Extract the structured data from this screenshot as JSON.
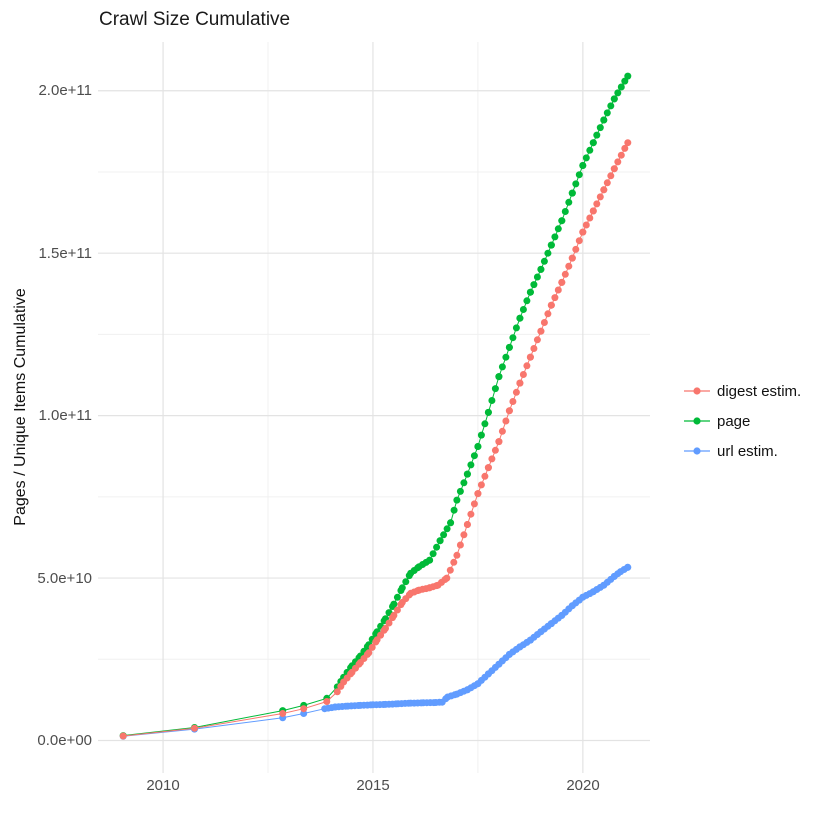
{
  "title": "Crawl Size Cumulative",
  "y_axis": {
    "label": "Pages / Unique Items Cumulative",
    "ticks": [
      "0.0e+00",
      "5.0e+10",
      "1.0e+11",
      "1.5e+11",
      "2.0e+11"
    ]
  },
  "x_axis": {
    "ticks": [
      "2010",
      "2015",
      "2020"
    ]
  },
  "legend": {
    "position": "right",
    "entries": [
      "digest estim.",
      "page",
      "url estim."
    ]
  },
  "chart_data": {
    "type": "scatter",
    "title": "Crawl Size Cumulative",
    "xlabel": "",
    "ylabel": "Pages / Unique Items Cumulative",
    "y_unit": "items, values listed in units of 1e9 (billions)",
    "x_unit": "year (decimal)",
    "xlim": [
      2008.45,
      2021.6
    ],
    "ylim_e9": [
      -10,
      215
    ],
    "x_breaks": [
      2010,
      2015,
      2020
    ],
    "x_minor_breaks": [
      2012.5,
      2017.5
    ],
    "y_breaks_e9": [
      0,
      50,
      100,
      150,
      200
    ],
    "y_minor_breaks_e9": [
      25,
      75,
      125,
      175
    ],
    "grid": true,
    "legend_position": "right",
    "point_interval_years": 0.0833,
    "series": [
      {
        "name": "digest estim.",
        "color": "#F8766D",
        "dense_from": 2014.0,
        "points": [
          [
            2009.05,
            1.4
          ],
          [
            2010.75,
            3.8
          ],
          [
            2012.85,
            8.3
          ],
          [
            2013.35,
            9.8
          ],
          [
            2013.9,
            12
          ],
          [
            2014.15,
            15
          ],
          [
            2014.3,
            18
          ],
          [
            2014.5,
            21
          ],
          [
            2014.7,
            24
          ],
          [
            2014.9,
            27
          ],
          [
            2015.1,
            31
          ],
          [
            2015.3,
            34.5
          ],
          [
            2015.5,
            38.5
          ],
          [
            2015.7,
            42.5
          ],
          [
            2015.9,
            45.3
          ],
          [
            2016.1,
            46.3
          ],
          [
            2016.35,
            47
          ],
          [
            2016.55,
            47.8
          ],
          [
            2016.76,
            50
          ],
          [
            2017.0,
            57
          ],
          [
            2017.25,
            66.5
          ],
          [
            2017.5,
            76
          ],
          [
            2017.75,
            84
          ],
          [
            2018.0,
            92
          ],
          [
            2018.25,
            101.5
          ],
          [
            2018.5,
            110
          ],
          [
            2018.75,
            118
          ],
          [
            2019.0,
            126
          ],
          [
            2019.25,
            134
          ],
          [
            2019.5,
            141
          ],
          [
            2019.75,
            148.5
          ],
          [
            2020.0,
            156.5
          ],
          [
            2020.25,
            163
          ],
          [
            2020.5,
            169.5
          ],
          [
            2020.75,
            176
          ],
          [
            2021.07,
            184
          ]
        ]
      },
      {
        "name": "page",
        "color": "#00BA38",
        "dense_from": 2014.0,
        "points": [
          [
            2009.05,
            1.5
          ],
          [
            2010.75,
            4
          ],
          [
            2012.85,
            9.2
          ],
          [
            2013.35,
            10.8
          ],
          [
            2013.9,
            13
          ],
          [
            2014.15,
            16.5
          ],
          [
            2014.3,
            19.5
          ],
          [
            2014.5,
            23
          ],
          [
            2014.7,
            26
          ],
          [
            2014.9,
            29.5
          ],
          [
            2015.1,
            33.5
          ],
          [
            2015.3,
            37.5
          ],
          [
            2015.5,
            42
          ],
          [
            2015.7,
            47
          ],
          [
            2015.9,
            51.5
          ],
          [
            2016.1,
            53.5
          ],
          [
            2016.35,
            55.5
          ],
          [
            2016.6,
            61.5
          ],
          [
            2016.85,
            67
          ],
          [
            2017.0,
            74
          ],
          [
            2017.25,
            82
          ],
          [
            2017.5,
            90.5
          ],
          [
            2017.75,
            101
          ],
          [
            2018.0,
            112
          ],
          [
            2018.25,
            121
          ],
          [
            2018.5,
            130
          ],
          [
            2018.75,
            138
          ],
          [
            2019.0,
            145
          ],
          [
            2019.25,
            152.5
          ],
          [
            2019.5,
            160
          ],
          [
            2019.75,
            168.5
          ],
          [
            2020.0,
            177
          ],
          [
            2020.25,
            184
          ],
          [
            2020.5,
            191
          ],
          [
            2020.75,
            197.5
          ],
          [
            2021.07,
            204.5
          ]
        ]
      },
      {
        "name": "url estim.",
        "color": "#619CFF",
        "dense_from": 2013.8,
        "points": [
          [
            2009.05,
            1.3
          ],
          [
            2010.75,
            3.5
          ],
          [
            2012.85,
            7.0
          ],
          [
            2013.35,
            8.3
          ],
          [
            2013.85,
            9.8
          ],
          [
            2014.1,
            10.3
          ],
          [
            2014.4,
            10.6
          ],
          [
            2014.7,
            10.8
          ],
          [
            2015.0,
            11.0
          ],
          [
            2015.3,
            11.1
          ],
          [
            2015.6,
            11.3
          ],
          [
            2015.9,
            11.5
          ],
          [
            2016.2,
            11.6
          ],
          [
            2016.5,
            11.7
          ],
          [
            2016.65,
            11.8
          ],
          [
            2016.78,
            13.4
          ],
          [
            2017.0,
            14.3
          ],
          [
            2017.25,
            15.6
          ],
          [
            2017.5,
            17.5
          ],
          [
            2017.75,
            20.5
          ],
          [
            2018.0,
            23.5
          ],
          [
            2018.25,
            26.5
          ],
          [
            2018.5,
            28.8
          ],
          [
            2018.75,
            30.9
          ],
          [
            2019.0,
            33.5
          ],
          [
            2019.25,
            36
          ],
          [
            2019.5,
            38.5
          ],
          [
            2019.75,
            41.5
          ],
          [
            2020.0,
            44.1
          ],
          [
            2020.25,
            45.8
          ],
          [
            2020.5,
            47.8
          ],
          [
            2020.75,
            50.5
          ],
          [
            2020.9,
            52
          ],
          [
            2021.07,
            53.3
          ]
        ]
      }
    ]
  },
  "colors": {
    "grid_major": "#e3e3e3",
    "grid_minor": "#f0f0f0",
    "background": "#ffffff"
  }
}
